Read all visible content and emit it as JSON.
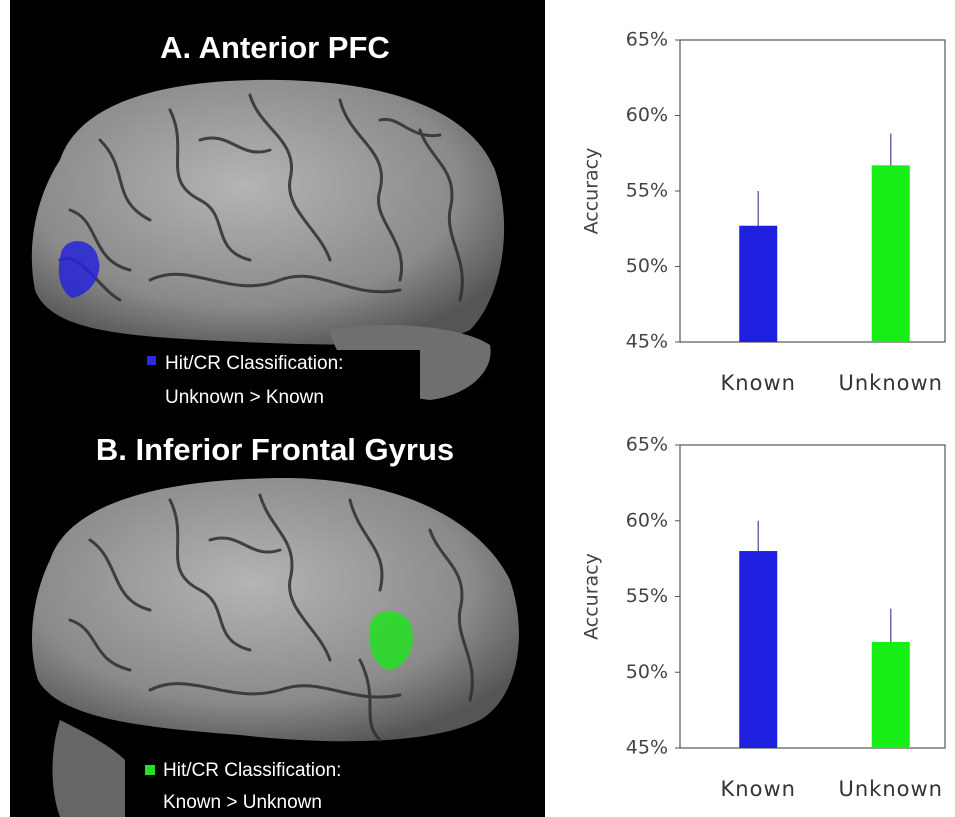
{
  "brain_panels": [
    {
      "title": "A. Anterior PFC",
      "legend": [
        "Hit/CR Classification:",
        "Unknown > Known"
      ]
    },
    {
      "title": "B. Inferior Frontal Gyrus",
      "legend": [
        "Hit/CR Classification:",
        "Known > Unknown"
      ]
    }
  ],
  "chart_data": [
    {
      "type": "bar",
      "y_label": "Accuracy",
      "categories": [
        "Known",
        "Unknown"
      ],
      "values": [
        52.7,
        56.7
      ],
      "errors": [
        2.3,
        2.1
      ],
      "colors": [
        "#1f1fe0",
        "#16ee16"
      ],
      "ylim": [
        45,
        65
      ],
      "yticks": [
        {
          "value": 45,
          "label": "45%"
        },
        {
          "value": 50,
          "label": "50%"
        },
        {
          "value": 55,
          "label": "55%"
        },
        {
          "value": 60,
          "label": "60%"
        },
        {
          "value": 65,
          "label": "65%"
        }
      ]
    },
    {
      "type": "bar",
      "y_label": "Accuracy",
      "categories": [
        "Known",
        "Unknown"
      ],
      "values": [
        58.0,
        52.0
      ],
      "errors": [
        2.0,
        2.2
      ],
      "colors": [
        "#1f1fe0",
        "#16ee16"
      ],
      "ylim": [
        45,
        65
      ],
      "yticks": [
        {
          "value": 45,
          "label": "45%"
        },
        {
          "value": 50,
          "label": "50%"
        },
        {
          "value": 55,
          "label": "55%"
        },
        {
          "value": 60,
          "label": "60%"
        },
        {
          "value": 65,
          "label": "65%"
        }
      ]
    }
  ]
}
